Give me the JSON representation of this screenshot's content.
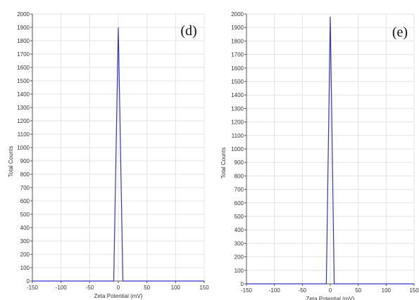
{
  "chart_data": [
    {
      "type": "line",
      "panel_label": "(d)",
      "xlabel": "Zeta Potential (mV)",
      "ylabel": "Total Counts",
      "xlim": [
        -150,
        150
      ],
      "ylim": [
        0,
        2000
      ],
      "x_ticks": [
        "-150",
        "-100",
        "-50",
        "0",
        "50",
        "100",
        "150"
      ],
      "y_ticks": [
        "0",
        "100",
        "200",
        "300",
        "400",
        "500",
        "600",
        "700",
        "800",
        "900",
        "1000",
        "1100",
        "1200",
        "1300",
        "1400",
        "1500",
        "1600",
        "1700",
        "1800",
        "1900",
        "2000"
      ],
      "grid": true,
      "line_color": "#3333cc",
      "series": [
        {
          "x": [
            -150,
            -8,
            0,
            8,
            150
          ],
          "y": [
            0,
            0,
            1900,
            0,
            0
          ]
        }
      ]
    },
    {
      "type": "line",
      "panel_label": "(e)",
      "xlabel": "Zeta Potential (mV)",
      "ylabel": "Total Counts",
      "xlim": [
        -150,
        150
      ],
      "ylim": [
        0,
        2000
      ],
      "x_ticks": [
        "-150",
        "-100",
        "-50",
        "0",
        "50",
        "100",
        "150"
      ],
      "y_ticks": [
        "0",
        "100",
        "200",
        "300",
        "400",
        "500",
        "600",
        "700",
        "800",
        "900",
        "1000",
        "1100",
        "1200",
        "1300",
        "1400",
        "1500",
        "1600",
        "1700",
        "1800",
        "1900",
        "2000"
      ],
      "grid": true,
      "line_color": "#3333cc",
      "series": [
        {
          "x": [
            -150,
            -7,
            0,
            7,
            150
          ],
          "y": [
            0,
            0,
            1980,
            0,
            0
          ]
        }
      ]
    }
  ]
}
